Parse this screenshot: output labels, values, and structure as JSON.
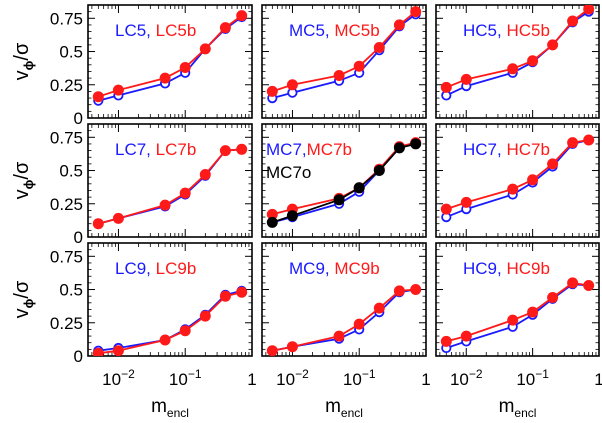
{
  "colors": {
    "blue": "#1a1aff",
    "red": "#ff1a1a",
    "black": "#000000"
  },
  "axes": {
    "ylabel_main": "v",
    "ylabel_sub": "ϕ",
    "ylabel_tail": "/σ",
    "xlabel_main": "m",
    "xlabel_sub": "encl",
    "yticks": [
      "0",
      "0.25",
      "0.5",
      "0.75"
    ],
    "xticks": [
      {
        "base": "10",
        "exp": "−2"
      },
      {
        "base": "10",
        "exp": "−1"
      },
      {
        "base": "1",
        "exp": ""
      }
    ]
  },
  "chart_data": {
    "type": "line",
    "xscale": "log",
    "xlim": [
      0.0035,
      1.0
    ],
    "ylim": [
      0,
      0.85
    ],
    "x": [
      0.005,
      0.01,
      0.05,
      0.1,
      0.2,
      0.4,
      0.7
    ],
    "panels": [
      {
        "id": "LC5",
        "labels": [
          {
            "text": "LC5,",
            "color": "blue"
          },
          {
            "text": "LC5b",
            "color": "red"
          }
        ],
        "series": [
          {
            "name": "LC5",
            "color": "blue",
            "marker": "open",
            "values": [
              0.13,
              0.17,
              0.26,
              0.34,
              0.52,
              0.67,
              0.76
            ]
          },
          {
            "name": "LC5b",
            "color": "red",
            "marker": "filled",
            "values": [
              0.16,
              0.21,
              0.3,
              0.38,
              0.52,
              0.68,
              0.77
            ]
          }
        ]
      },
      {
        "id": "MC5",
        "labels": [
          {
            "text": "MC5,",
            "color": "blue"
          },
          {
            "text": "MC5b",
            "color": "red"
          }
        ],
        "series": [
          {
            "name": "MC5",
            "color": "blue",
            "marker": "open",
            "values": [
              0.15,
              0.19,
              0.28,
              0.34,
              0.51,
              0.69,
              0.78
            ]
          },
          {
            "name": "MC5b",
            "color": "red",
            "marker": "filled",
            "values": [
              0.2,
              0.25,
              0.32,
              0.39,
              0.53,
              0.7,
              0.8
            ]
          }
        ]
      },
      {
        "id": "HC5",
        "labels": [
          {
            "text": "HC5,",
            "color": "blue"
          },
          {
            "text": "HC5b",
            "color": "red"
          }
        ],
        "series": [
          {
            "name": "HC5",
            "color": "blue",
            "marker": "open",
            "values": [
              0.17,
              0.24,
              0.34,
              0.42,
              0.55,
              0.72,
              0.8
            ]
          },
          {
            "name": "HC5b",
            "color": "red",
            "marker": "filled",
            "values": [
              0.23,
              0.29,
              0.37,
              0.43,
              0.55,
              0.73,
              0.82
            ]
          }
        ]
      },
      {
        "id": "LC7",
        "labels": [
          {
            "text": "LC7,",
            "color": "blue"
          },
          {
            "text": "LC7b",
            "color": "red"
          }
        ],
        "series": [
          {
            "name": "LC7",
            "color": "blue",
            "marker": "open",
            "values": [
              0.1,
              0.14,
              0.23,
              0.32,
              0.46,
              0.65,
              0.66
            ]
          },
          {
            "name": "LC7b",
            "color": "red",
            "marker": "filled",
            "values": [
              0.1,
              0.14,
              0.24,
              0.33,
              0.47,
              0.65,
              0.66
            ]
          }
        ]
      },
      {
        "id": "MC7",
        "labels": [
          {
            "text": "MC7,",
            "color": "blue"
          },
          {
            "text": "MC7b",
            "color": "red"
          },
          {
            "text": "MC7o",
            "color": "black"
          }
        ],
        "series": [
          {
            "name": "MC7",
            "color": "blue",
            "marker": "open",
            "values": [
              0.11,
              0.15,
              0.25,
              0.34,
              0.5,
              0.67,
              0.71
            ]
          },
          {
            "name": "MC7b",
            "color": "red",
            "marker": "filled",
            "values": [
              0.17,
              0.21,
              0.29,
              0.37,
              0.51,
              0.68,
              0.71
            ]
          },
          {
            "name": "MC7o",
            "color": "black",
            "marker": "filled",
            "values": [
              0.11,
              0.16,
              0.28,
              0.37,
              0.5,
              0.67,
              0.7
            ]
          }
        ]
      },
      {
        "id": "HC7",
        "labels": [
          {
            "text": "HC7,",
            "color": "blue"
          },
          {
            "text": "HC7b",
            "color": "red"
          }
        ],
        "series": [
          {
            "name": "HC7",
            "color": "blue",
            "marker": "open",
            "values": [
              0.15,
              0.21,
              0.32,
              0.41,
              0.53,
              0.7,
              0.73
            ]
          },
          {
            "name": "HC7b",
            "color": "red",
            "marker": "filled",
            "values": [
              0.21,
              0.26,
              0.36,
              0.43,
              0.55,
              0.71,
              0.73
            ]
          }
        ]
      },
      {
        "id": "LC9",
        "labels": [
          {
            "text": "LC9,",
            "color": "blue"
          },
          {
            "text": "LC9b",
            "color": "red"
          }
        ],
        "series": [
          {
            "name": "LC9",
            "color": "blue",
            "marker": "open",
            "values": [
              0.04,
              0.06,
              0.12,
              0.2,
              0.31,
              0.46,
              0.49
            ]
          },
          {
            "name": "LC9b",
            "color": "red",
            "marker": "filled",
            "values": [
              0.02,
              0.04,
              0.12,
              0.19,
              0.3,
              0.45,
              0.48
            ]
          }
        ]
      },
      {
        "id": "MC9",
        "labels": [
          {
            "text": "MC9,",
            "color": "blue"
          },
          {
            "text": "MC9b",
            "color": "red"
          }
        ],
        "series": [
          {
            "name": "MC9",
            "color": "blue",
            "marker": "open",
            "values": [
              0.04,
              0.07,
              0.13,
              0.2,
              0.33,
              0.48,
              0.5
            ]
          },
          {
            "name": "MC9b",
            "color": "red",
            "marker": "filled",
            "values": [
              0.04,
              0.07,
              0.15,
              0.24,
              0.36,
              0.49,
              0.5
            ]
          }
        ]
      },
      {
        "id": "HC9",
        "labels": [
          {
            "text": "HC9,",
            "color": "blue"
          },
          {
            "text": "HC9b",
            "color": "red"
          }
        ],
        "series": [
          {
            "name": "HC9",
            "color": "blue",
            "marker": "open",
            "values": [
              0.06,
              0.11,
              0.22,
              0.31,
              0.43,
              0.54,
              0.53
            ]
          },
          {
            "name": "HC9b",
            "color": "red",
            "marker": "filled",
            "values": [
              0.11,
              0.15,
              0.27,
              0.33,
              0.44,
              0.55,
              0.53
            ]
          }
        ]
      }
    ]
  }
}
